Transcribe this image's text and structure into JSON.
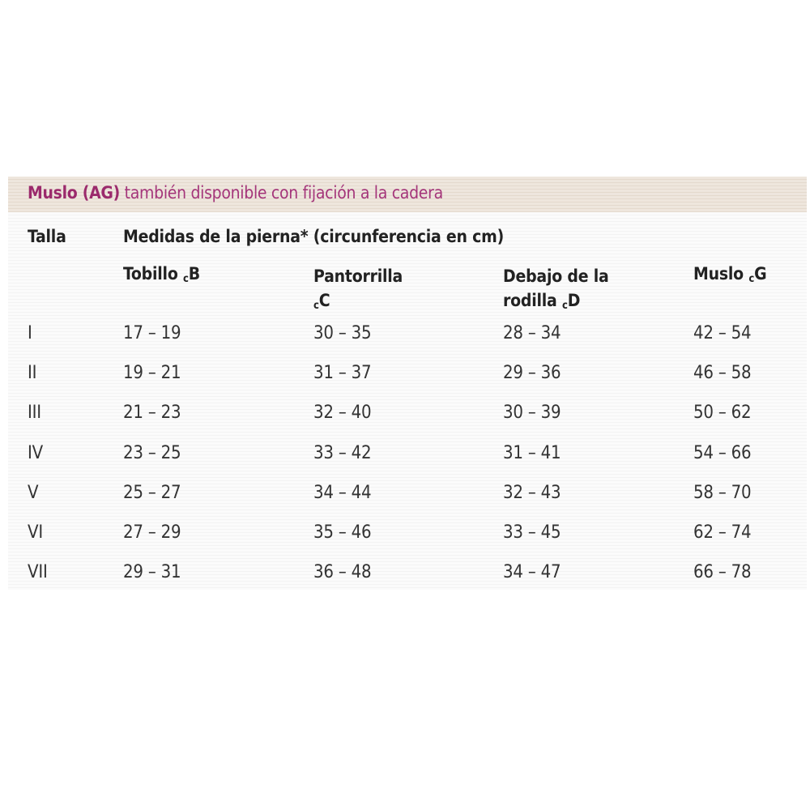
{
  "title": {
    "strong": "Muslo (AG)",
    "rest": " también disponible con fijación a la cadera"
  },
  "header": {
    "size_label": "Talla",
    "measures_label": "Medidas de la pierna* (circunferencia en cm)",
    "columns": [
      {
        "line1": "Tobillo ",
        "sub": "c",
        "letter": "B",
        "line2": ""
      },
      {
        "line1": "Pantorrilla",
        "sub": "c",
        "letter": "C",
        "line2": ""
      },
      {
        "line1": "Debajo de la",
        "sub": "c",
        "letter": "D",
        "line2": "rodilla "
      },
      {
        "line1": "Muslo ",
        "sub": "c",
        "letter": "G",
        "line2": ""
      }
    ]
  },
  "rows": [
    {
      "size": "I",
      "values": [
        "17 – 19",
        "30 – 35",
        "28 – 34",
        "42 – 54"
      ]
    },
    {
      "size": "II",
      "values": [
        "19 – 21",
        "31 – 37",
        "29 – 36",
        "46 – 58"
      ]
    },
    {
      "size": "III",
      "values": [
        "21 – 23",
        "32 – 40",
        "30 – 39",
        "50 – 62"
      ]
    },
    {
      "size": "IV",
      "values": [
        "23 – 25",
        "33 – 42",
        "31 – 41",
        "54 – 66"
      ]
    },
    {
      "size": "V",
      "values": [
        "25 – 27",
        "34 – 44",
        "32 – 43",
        "58 – 70"
      ]
    },
    {
      "size": "VI",
      "values": [
        "27 – 29",
        "35 – 46",
        "33 – 45",
        "62 – 74"
      ]
    },
    {
      "size": "VII",
      "values": [
        "29 – 31",
        "36 – 48",
        "34 – 47",
        "66 – 78"
      ]
    }
  ],
  "colors": {
    "title": "#a4357a",
    "band": "#eee6dd"
  }
}
